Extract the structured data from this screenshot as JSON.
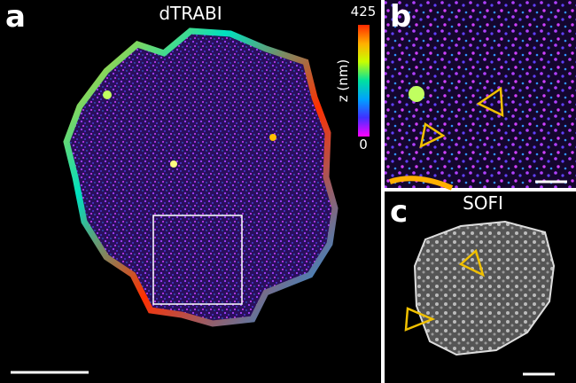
{
  "panels": {
    "a": {
      "letter": "a",
      "title": "dTRABI"
    },
    "b": {
      "letter": "b"
    },
    "c": {
      "letter": "c",
      "title": "SOFI"
    }
  },
  "colorbar": {
    "label": "z (nm)",
    "max": 425,
    "min": 0
  }
}
